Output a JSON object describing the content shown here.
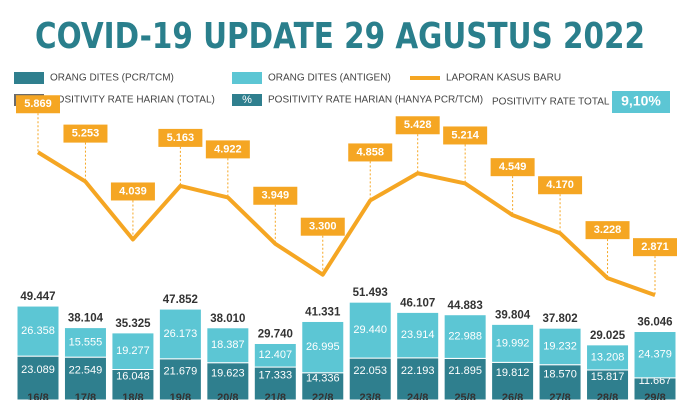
{
  "chart_data": {
    "type": "bar-line",
    "title": "COVID-19 UPDATE 29 AGUSTUS 2022",
    "categories": [
      "16/8",
      "17/8",
      "18/8",
      "19/8",
      "20/8",
      "21/8",
      "22/8",
      "23/8",
      "24/8",
      "25/8",
      "26/8",
      "27/8",
      "28/8",
      "29/8"
    ],
    "ylim": [
      0,
      60000
    ],
    "y2lim": [
      0,
      9000
    ],
    "series": [
      {
        "name": "ORANG DITES (PCR/TCM)",
        "color": "#2f7f8e",
        "stack": true,
        "values": [
          23089,
          22549,
          16048,
          21679,
          19623,
          17333,
          14336,
          22053,
          22193,
          21895,
          19812,
          18570,
          15817,
          11667
        ],
        "value_labels": [
          "23.089",
          "22.549",
          "16.048",
          "21.679",
          "19.623",
          "17.333",
          "14.336",
          "22.053",
          "22.193",
          "21.895",
          "19.812",
          "18.570",
          "15.817",
          "11.667"
        ]
      },
      {
        "name": "ORANG DITES (ANTIGEN)",
        "color": "#5cc6d4",
        "stack": true,
        "values": [
          26358,
          15555,
          19277,
          26173,
          18387,
          12407,
          26995,
          29440,
          23914,
          22988,
          19992,
          19232,
          13208,
          24379
        ],
        "value_labels": [
          "26.358",
          "15.555",
          "19.277",
          "26.173",
          "18.387",
          "12.407",
          "26.995",
          "29.440",
          "23.914",
          "22.988",
          "19.992",
          "19.232",
          "13.208",
          "24.379"
        ]
      },
      {
        "name": "LAPORAN KASUS BARU",
        "color": "#f5a623",
        "axis": "y2",
        "values": [
          5869,
          5253,
          4039,
          5163,
          4922,
          3949,
          3300,
          4858,
          5428,
          5214,
          4549,
          4170,
          3228,
          2871
        ],
        "value_labels": [
          "5.869",
          "5.253",
          "4.039",
          "5.163",
          "4.922",
          "3.949",
          "3.300",
          "4.858",
          "5.428",
          "5.214",
          "4.549",
          "4.170",
          "3.228",
          "2.871"
        ]
      }
    ],
    "totals": {
      "values": [
        49447,
        38104,
        35325,
        47852,
        38010,
        29740,
        41331,
        51493,
        46107,
        44883,
        39804,
        37802,
        29025,
        36046
      ],
      "value_labels": [
        "49.447",
        "38.104",
        "35.325",
        "47.852",
        "38.010",
        "29.740",
        "41.331",
        "51.493",
        "46.107",
        "44.883",
        "39.804",
        "37.802",
        "29.025",
        "36.046"
      ]
    },
    "extra_legend": [
      {
        "icon": "%",
        "color": "#6b6b6b",
        "name": "POSITIVITY RATE HARIAN (TOTAL)"
      },
      {
        "icon": "%",
        "color": "#2f7f8e",
        "name": "POSITIVITY RATE HARIAN (HANYA PCR/TCM)"
      }
    ],
    "positivity_total": {
      "name": "POSITIVITY RATE TOTAL",
      "value": {
        "value": 9.1,
        "label": "9,10%"
      },
      "color": "#5cc6d4"
    }
  }
}
